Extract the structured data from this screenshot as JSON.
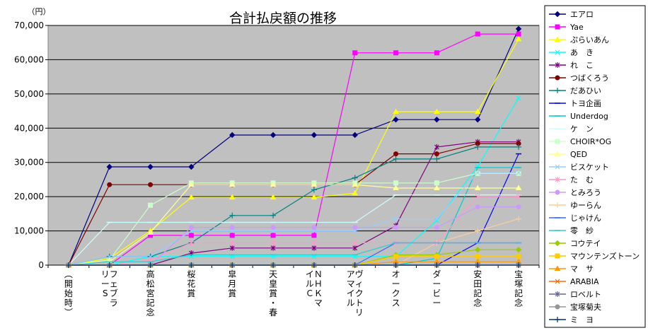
{
  "chart_data": {
    "type": "line",
    "title": "合計払戻額の推移",
    "ylabel": "（円）",
    "xlabel": "",
    "ylim": [
      0,
      70000
    ],
    "yticks": [
      0,
      10000,
      20000,
      30000,
      40000,
      50000,
      60000,
      70000
    ],
    "ytick_labels": [
      "0",
      "10,000",
      "20,000",
      "30,000",
      "40,000",
      "50,000",
      "60,000",
      "70,000"
    ],
    "categories": [
      "（開始時）",
      "フェブラリーS",
      "高松宮記念",
      "桜花賞",
      "皐月賞",
      "天皇賞・春",
      "ＮＨＫマイルＣ",
      "ヴィクトリアマイル",
      "オークス",
      "ダービー",
      "安田記念",
      "宝塚記念"
    ],
    "grid": "horizontal",
    "legend_position": "right",
    "series": [
      {
        "name": "エアロ",
        "color": "#000080",
        "marker": "diamond",
        "values": [
          0,
          28700,
          28700,
          28700,
          38000,
          38000,
          38000,
          38000,
          42500,
          42500,
          42500,
          69000
        ]
      },
      {
        "name": "Yae",
        "color": "#FF00FF",
        "marker": "square",
        "values": [
          0,
          0,
          8700,
          8700,
          8700,
          8700,
          8700,
          62000,
          62000,
          62000,
          67500,
          67500
        ]
      },
      {
        "name": "ぷらいあん",
        "color": "#FFFF00",
        "marker": "triangle",
        "values": [
          0,
          2000,
          10000,
          19800,
          19800,
          19800,
          19800,
          21000,
          44800,
          44800,
          44800,
          66000
        ]
      },
      {
        "name": "あ　き",
        "color": "#00FFFF",
        "marker": "x",
        "values": [
          0,
          0,
          2500,
          2500,
          2500,
          2500,
          2500,
          2500,
          2500,
          13000,
          28800,
          48800
        ]
      },
      {
        "name": "れ　こ",
        "color": "#800080",
        "marker": "star",
        "values": [
          0,
          0,
          0,
          3500,
          5000,
          5000,
          5000,
          5000,
          11500,
          34500,
          36000,
          36000
        ]
      },
      {
        "name": "つばくろう",
        "color": "#800000",
        "marker": "circle",
        "values": [
          0,
          23500,
          23500,
          23500,
          23500,
          23500,
          23500,
          23500,
          32500,
          32500,
          35500,
          35500
        ]
      },
      {
        "name": "だあひい",
        "color": "#008080",
        "marker": "plus",
        "values": [
          0,
          2500,
          2500,
          6500,
          14500,
          14500,
          22000,
          25500,
          31000,
          31000,
          34500,
          34500
        ]
      },
      {
        "name": "トヨ企画",
        "color": "#0000FF",
        "marker": "dash",
        "values": [
          0,
          0,
          0,
          0,
          0,
          0,
          0,
          0,
          0,
          0,
          6500,
          32500
        ]
      },
      {
        "name": "Underdog",
        "color": "#00CCCC",
        "marker": "dash",
        "values": [
          0,
          0,
          0,
          0,
          0,
          0,
          0,
          0,
          0,
          2000,
          28500,
          28500
        ]
      },
      {
        "name": "ケ　ン",
        "color": "#CCFFFF",
        "marker": "dash",
        "values": [
          0,
          12500,
          12500,
          12500,
          12500,
          12500,
          12500,
          12500,
          20500,
          20500,
          20500,
          20500
        ]
      },
      {
        "name": "CHOIR*OG",
        "color": "#CCFFCC",
        "marker": "square",
        "values": [
          0,
          1500,
          17500,
          24000,
          24000,
          24000,
          24000,
          24000,
          24000,
          24000,
          26800,
          26800
        ]
      },
      {
        "name": "QED",
        "color": "#FFFF99",
        "marker": "triangle",
        "values": [
          0,
          1000,
          9500,
          23500,
          23500,
          23500,
          23500,
          23500,
          22500,
          22500,
          22500,
          22500
        ]
      },
      {
        "name": "ビスケット",
        "color": "#99CCFF",
        "marker": "x",
        "values": [
          0,
          2500,
          2500,
          10000,
          10000,
          10000,
          10000,
          10000,
          13500,
          13500,
          27000,
          27000
        ]
      },
      {
        "name": "た　む",
        "color": "#FF99CC",
        "marker": "star",
        "values": [
          0,
          0,
          1500,
          6500,
          6500,
          6500,
          6500,
          6500,
          6500,
          6500,
          20000,
          20000
        ]
      },
      {
        "name": "とみろう",
        "color": "#CC99FF",
        "marker": "circle",
        "values": [
          0,
          0,
          0,
          11000,
          11000,
          11000,
          11000,
          11000,
          11000,
          11000,
          17000,
          17000
        ]
      },
      {
        "name": "ゆーらん",
        "color": "#FFCC99",
        "marker": "plus",
        "values": [
          0,
          0,
          0,
          0,
          0,
          0,
          0,
          0,
          0,
          6500,
          10000,
          13500
        ]
      },
      {
        "name": "じゃけん",
        "color": "#3366FF",
        "marker": "dash",
        "values": [
          0,
          0,
          0,
          0,
          0,
          0,
          0,
          0,
          6500,
          6500,
          6500,
          6500
        ]
      },
      {
        "name": "零　紗",
        "color": "#33CCCC",
        "marker": "dash",
        "values": [
          0,
          1000,
          1000,
          3000,
          3000,
          3000,
          3000,
          3000,
          6500,
          6500,
          6500,
          6500
        ]
      },
      {
        "name": "コウテイ",
        "color": "#99CC00",
        "marker": "diamond",
        "values": [
          0,
          0,
          0,
          0,
          0,
          0,
          0,
          0,
          3000,
          3000,
          4500,
          4500
        ]
      },
      {
        "name": "マウンテンズトーン",
        "color": "#FFCC00",
        "marker": "square",
        "values": [
          0,
          0,
          0,
          0,
          0,
          0,
          0,
          0,
          2500,
          2500,
          2500,
          2500
        ]
      },
      {
        "name": "マ　サ",
        "color": "#FF9900",
        "marker": "triangle",
        "values": [
          0,
          0,
          0,
          0,
          0,
          0,
          0,
          0,
          1000,
          1000,
          1000,
          1000
        ]
      },
      {
        "name": "ARABIA",
        "color": "#FF6600",
        "marker": "x",
        "values": [
          0,
          0,
          0,
          0,
          0,
          0,
          0,
          0,
          0,
          0,
          0,
          0
        ]
      },
      {
        "name": "ロベルト",
        "color": "#666699",
        "marker": "star",
        "values": [
          0,
          0,
          0,
          0,
          0,
          0,
          0,
          0,
          0,
          0,
          0,
          0
        ]
      },
      {
        "name": "宝塚菊夫",
        "color": "#969696",
        "marker": "circle",
        "values": [
          0,
          0,
          0,
          0,
          0,
          0,
          0,
          0,
          0,
          0,
          0,
          0
        ]
      },
      {
        "name": "ミ　ヨ",
        "color": "#003366",
        "marker": "plus",
        "values": [
          0,
          0,
          0,
          0,
          0,
          0,
          0,
          0,
          0,
          0,
          0,
          0
        ]
      }
    ]
  }
}
